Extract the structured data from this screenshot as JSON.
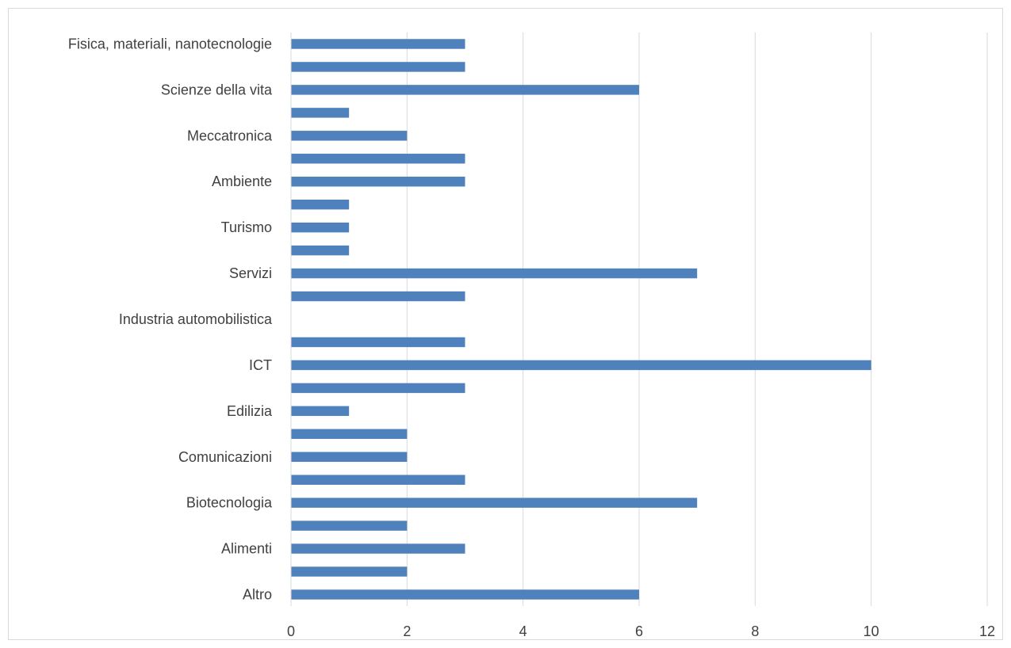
{
  "chart_data": {
    "type": "bar",
    "orientation": "horizontal",
    "categories": [
      "Fisica, materiali, nanotecnologie",
      "",
      "Scienze della vita",
      "",
      "Meccatronica",
      "",
      "Ambiente",
      "",
      "Turismo",
      "",
      "Servizi",
      "",
      "Industria automobilistica",
      "",
      "ICT",
      "",
      "Edilizia",
      "",
      "Comunicazioni",
      "",
      "Biotecnologia",
      "",
      "Alimenti",
      "",
      "Altro"
    ],
    "values": [
      3,
      3,
      6,
      1,
      2,
      3,
      3,
      1,
      1,
      1,
      7,
      3,
      0,
      3,
      10,
      3,
      1,
      2,
      2,
      3,
      7,
      2,
      3,
      2,
      6
    ],
    "xlim": [
      0,
      12
    ],
    "xticks": [
      0,
      2,
      4,
      6,
      8,
      10,
      12
    ],
    "grid": true,
    "bar_color": "#4f81bd",
    "grid_color": "#d9d9d9",
    "title": "",
    "xlabel": "",
    "ylabel": ""
  }
}
